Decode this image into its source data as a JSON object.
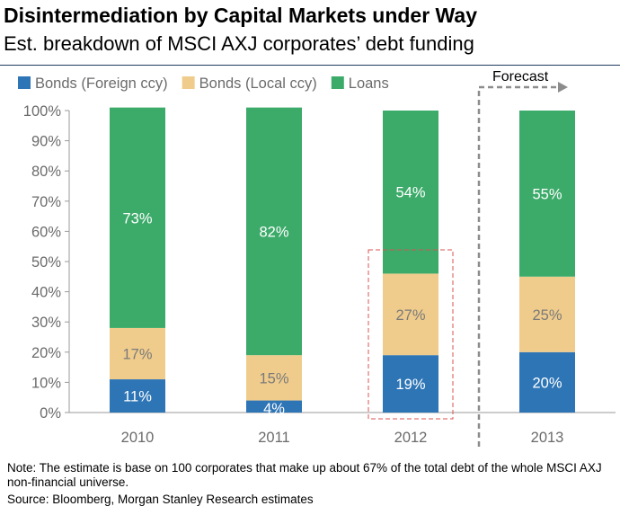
{
  "chart_data": {
    "type": "bar",
    "stacked": true,
    "title": "Disintermediation by Capital Markets under Way",
    "subtitle": "Est. breakdown of MSCI AXJ corporates’ debt funding",
    "categories": [
      "2010",
      "2011",
      "2012",
      "2013"
    ],
    "series": [
      {
        "name": "Bonds (Foreign ccy)",
        "color": "#2e75b6",
        "values": [
          11,
          4,
          19,
          20
        ],
        "labels": [
          "11%",
          "4%",
          "19%",
          "20%"
        ]
      },
      {
        "name": "Bonds (Local ccy)",
        "color": "#f0cc8c",
        "values": [
          17,
          15,
          27,
          25
        ],
        "labels": [
          "17%",
          "15%",
          "27%",
          "25%"
        ]
      },
      {
        "name": "Loans",
        "color": "#3cab6a",
        "values": [
          73,
          82,
          54,
          55
        ],
        "labels": [
          "73%",
          "82%",
          "54%",
          "55%"
        ]
      }
    ],
    "ylim": [
      0,
      100
    ],
    "yticks": [
      "0%",
      "10%",
      "20%",
      "30%",
      "40%",
      "50%",
      "60%",
      "70%",
      "80%",
      "90%",
      "100%"
    ],
    "legend_position": "top",
    "forecast_label": "Forecast",
    "highlighted_category": "2012",
    "grid": false
  },
  "note": "Note: The estimate is base on 100 corporates that make up about 67% of the total debt of the whole MSCI AXJ non-financial universe.",
  "source": "Source: Bloomberg, Morgan Stanley Research estimates"
}
